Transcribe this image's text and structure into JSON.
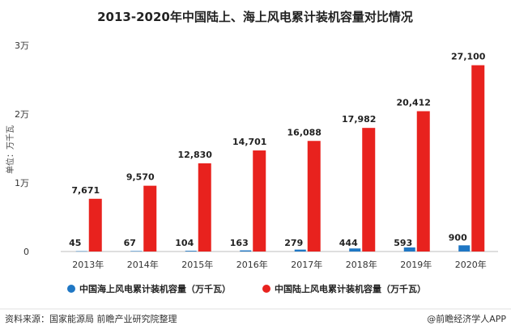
{
  "chart_data": {
    "type": "bar",
    "title": "2013-2020年中国陆上、海上风电累计装机容量对比情况",
    "ylabel": "单位：万千瓦",
    "categories": [
      "2013年",
      "2014年",
      "2015年",
      "2016年",
      "2017年",
      "2018年",
      "2019年",
      "2020年"
    ],
    "ylim": [
      0,
      30000
    ],
    "yticks": [
      {
        "value": 0,
        "label": "0"
      },
      {
        "value": 10000,
        "label": "1万"
      },
      {
        "value": 20000,
        "label": "2万"
      },
      {
        "value": 30000,
        "label": "3万"
      }
    ],
    "series": [
      {
        "name": "中国海上风电累计装机容量（万千瓦）",
        "color": "#1f77c4",
        "values": [
          45,
          67,
          104,
          163,
          279,
          444,
          593,
          900
        ],
        "labels": [
          "45",
          "67",
          "104",
          "163",
          "279",
          "444",
          "593",
          "900"
        ]
      },
      {
        "name": "中国陆上风电累计装机容量（万千瓦）",
        "color": "#e8221e",
        "values": [
          7671,
          9570,
          12830,
          14701,
          16088,
          17982,
          20412,
          27100
        ],
        "labels": [
          "7,671",
          "9,570",
          "12,830",
          "14,701",
          "16,088",
          "17,982",
          "20,412",
          "27,100"
        ]
      }
    ],
    "grid": false,
    "legend": "bottom"
  },
  "footer": {
    "source": "资料来源：国家能源局 前瞻产业研究院整理",
    "brand": "@前瞻经济学人APP"
  }
}
